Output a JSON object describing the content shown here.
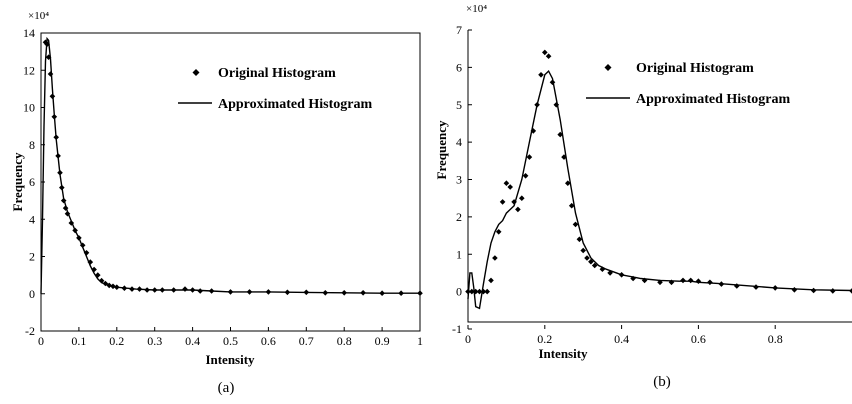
{
  "chart_data": [
    {
      "type": "scatter",
      "panel": "(a)",
      "multiplier": "×10⁴",
      "xlabel": "Intensity",
      "ylabel": "Frequency",
      "xlim": [
        0,
        1
      ],
      "ylim": [
        -2,
        14
      ],
      "xticks": [
        "0",
        "0.1",
        "0.2",
        "0.3",
        "0.4",
        "0.5",
        "0.6",
        "0.7",
        "0.8",
        "0.9",
        "1"
      ],
      "yticks": [
        "-2",
        "0",
        "2",
        "4",
        "6",
        "8",
        "10",
        "12",
        "14"
      ],
      "grid": false,
      "legend_position": "top-right",
      "series": [
        {
          "name": "Original Histogram",
          "style": "markers",
          "x": [
            0.012,
            0.016,
            0.02,
            0.025,
            0.03,
            0.035,
            0.04,
            0.045,
            0.05,
            0.055,
            0.06,
            0.065,
            0.07,
            0.08,
            0.09,
            0.1,
            0.11,
            0.12,
            0.13,
            0.14,
            0.15,
            0.16,
            0.17,
            0.18,
            0.19,
            0.2,
            0.22,
            0.24,
            0.26,
            0.28,
            0.3,
            0.32,
            0.35,
            0.38,
            0.4,
            0.42,
            0.45,
            0.5,
            0.55,
            0.6,
            0.65,
            0.7,
            0.75,
            0.8,
            0.85,
            0.9,
            0.95,
            1.0
          ],
          "y": [
            13.5,
            13.4,
            12.7,
            11.8,
            10.6,
            9.5,
            8.4,
            7.4,
            6.5,
            5.7,
            5.0,
            4.6,
            4.3,
            3.8,
            3.4,
            3.0,
            2.6,
            2.2,
            1.7,
            1.3,
            1.0,
            0.7,
            0.55,
            0.45,
            0.4,
            0.35,
            0.3,
            0.25,
            0.25,
            0.2,
            0.2,
            0.2,
            0.2,
            0.25,
            0.2,
            0.15,
            0.15,
            0.1,
            0.1,
            0.1,
            0.08,
            0.08,
            0.05,
            0.05,
            0.05,
            0.03,
            0.03,
            0.03
          ]
        },
        {
          "name": "Approximated Histogram",
          "style": "line",
          "x": [
            0,
            0.004,
            0.008,
            0.012,
            0.016,
            0.02,
            0.025,
            0.03,
            0.035,
            0.04,
            0.05,
            0.06,
            0.07,
            0.08,
            0.09,
            0.1,
            0.11,
            0.12,
            0.13,
            0.14,
            0.15,
            0.16,
            0.17,
            0.18,
            0.2,
            0.25,
            0.3,
            0.35,
            0.4,
            0.45,
            0.5,
            0.6,
            0.7,
            0.8,
            0.9,
            1.0
          ],
          "y": [
            0,
            4,
            9,
            12.5,
            13.7,
            13.6,
            12.6,
            11.0,
            9.6,
            8.3,
            6.4,
            5.1,
            4.4,
            3.9,
            3.4,
            3.0,
            2.5,
            2.0,
            1.5,
            1.1,
            0.8,
            0.6,
            0.5,
            0.45,
            0.35,
            0.25,
            0.2,
            0.2,
            0.2,
            0.15,
            0.1,
            0.1,
            0.07,
            0.05,
            0.03,
            0.03
          ]
        }
      ]
    },
    {
      "type": "scatter",
      "panel": "(b)",
      "multiplier": "×10⁴",
      "xlabel": "Intensity",
      "ylabel": "Frequency",
      "xlim": [
        0,
        1
      ],
      "ylim": [
        -1,
        7
      ],
      "xticks": [
        "0",
        "0.2",
        "0.4",
        "0.6",
        "0.8"
      ],
      "yticks": [
        "-1",
        "0",
        "1",
        "2",
        "3",
        "4",
        "5",
        "6",
        "7"
      ],
      "grid": false,
      "legend_position": "top-right",
      "series": [
        {
          "name": "Original Histogram",
          "style": "markers",
          "x": [
            0.0,
            0.01,
            0.02,
            0.03,
            0.04,
            0.05,
            0.06,
            0.07,
            0.08,
            0.09,
            0.1,
            0.11,
            0.12,
            0.13,
            0.14,
            0.15,
            0.16,
            0.17,
            0.18,
            0.19,
            0.2,
            0.21,
            0.22,
            0.23,
            0.24,
            0.25,
            0.26,
            0.27,
            0.28,
            0.29,
            0.3,
            0.31,
            0.32,
            0.33,
            0.35,
            0.37,
            0.4,
            0.43,
            0.46,
            0.5,
            0.53,
            0.56,
            0.58,
            0.6,
            0.63,
            0.66,
            0.7,
            0.75,
            0.8,
            0.85,
            0.9,
            0.95,
            1.0
          ],
          "y": [
            0,
            0,
            0,
            0,
            0,
            0,
            0.3,
            0.9,
            1.6,
            2.4,
            2.9,
            2.8,
            2.4,
            2.2,
            2.5,
            3.1,
            3.6,
            4.3,
            5.0,
            5.8,
            6.4,
            6.3,
            5.6,
            5.0,
            4.2,
            3.6,
            2.9,
            2.3,
            1.8,
            1.4,
            1.1,
            0.9,
            0.8,
            0.7,
            0.6,
            0.5,
            0.45,
            0.35,
            0.3,
            0.25,
            0.25,
            0.3,
            0.3,
            0.28,
            0.25,
            0.2,
            0.15,
            0.12,
            0.1,
            0.05,
            0.03,
            0.02,
            0.02
          ]
        },
        {
          "name": "Approximated Histogram",
          "style": "line",
          "x": [
            0,
            0.005,
            0.01,
            0.015,
            0.02,
            0.03,
            0.04,
            0.05,
            0.06,
            0.07,
            0.08,
            0.09,
            0.1,
            0.12,
            0.14,
            0.16,
            0.18,
            0.2,
            0.21,
            0.22,
            0.24,
            0.26,
            0.28,
            0.3,
            0.32,
            0.34,
            0.36,
            0.4,
            0.45,
            0.5,
            0.55,
            0.58,
            0.6,
            0.65,
            0.7,
            0.8,
            0.9,
            1.0
          ],
          "y": [
            -0.2,
            0.5,
            0.5,
            0.1,
            -0.4,
            -0.45,
            0.2,
            0.8,
            1.3,
            1.6,
            1.8,
            1.9,
            2.1,
            2.3,
            3.0,
            4.0,
            5.0,
            5.8,
            5.9,
            5.7,
            4.6,
            3.3,
            2.1,
            1.3,
            0.9,
            0.7,
            0.6,
            0.45,
            0.35,
            0.3,
            0.28,
            0.28,
            0.25,
            0.22,
            0.18,
            0.1,
            0.05,
            0.03
          ]
        }
      ]
    }
  ]
}
